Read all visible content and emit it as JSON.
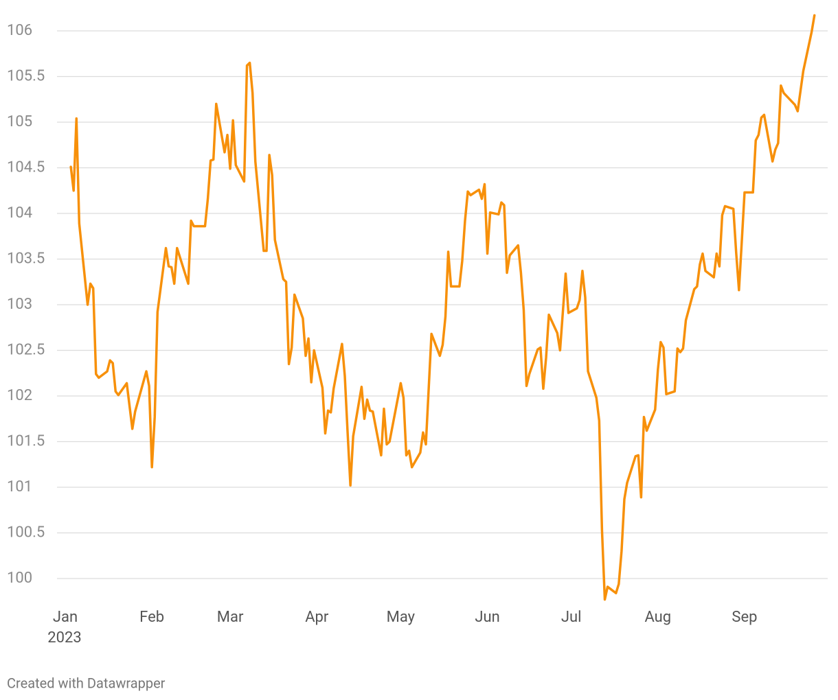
{
  "chart_data": {
    "type": "line",
    "x": [
      "2023-01-03",
      "2023-01-04",
      "2023-01-05",
      "2023-01-06",
      "2023-01-09",
      "2023-01-10",
      "2023-01-11",
      "2023-01-12",
      "2023-01-13",
      "2023-01-16",
      "2023-01-17",
      "2023-01-18",
      "2023-01-19",
      "2023-01-20",
      "2023-01-23",
      "2023-01-24",
      "2023-01-25",
      "2023-01-26",
      "2023-01-27",
      "2023-01-30",
      "2023-01-31",
      "2023-02-01",
      "2023-02-02",
      "2023-02-03",
      "2023-02-06",
      "2023-02-07",
      "2023-02-08",
      "2023-02-09",
      "2023-02-10",
      "2023-02-14",
      "2023-02-15",
      "2023-02-16",
      "2023-02-17",
      "2023-02-20",
      "2023-02-21",
      "2023-02-22",
      "2023-02-23",
      "2023-02-24",
      "2023-02-27",
      "2023-02-28",
      "2023-03-01",
      "2023-03-02",
      "2023-03-03",
      "2023-03-06",
      "2023-03-07",
      "2023-03-08",
      "2023-03-09",
      "2023-03-10",
      "2023-03-13",
      "2023-03-14",
      "2023-03-15",
      "2023-03-16",
      "2023-03-17",
      "2023-03-20",
      "2023-03-21",
      "2023-03-22",
      "2023-03-23",
      "2023-03-24",
      "2023-03-27",
      "2023-03-28",
      "2023-03-29",
      "2023-03-30",
      "2023-03-31",
      "2023-04-03",
      "2023-04-04",
      "2023-04-05",
      "2023-04-06",
      "2023-04-07",
      "2023-04-10",
      "2023-04-11",
      "2023-04-12",
      "2023-04-13",
      "2023-04-14",
      "2023-04-17",
      "2023-04-18",
      "2023-04-19",
      "2023-04-20",
      "2023-04-21",
      "2023-04-24",
      "2023-04-25",
      "2023-04-26",
      "2023-04-27",
      "2023-05-01",
      "2023-05-02",
      "2023-05-03",
      "2023-05-04",
      "2023-05-05",
      "2023-05-08",
      "2023-05-09",
      "2023-05-10",
      "2023-05-12",
      "2023-05-15",
      "2023-05-16",
      "2023-05-17",
      "2023-05-18",
      "2023-05-19",
      "2023-05-22",
      "2023-05-23",
      "2023-05-24",
      "2023-05-25",
      "2023-05-26",
      "2023-05-29",
      "2023-05-30",
      "2023-05-31",
      "2023-06-01",
      "2023-06-02",
      "2023-06-05",
      "2023-06-06",
      "2023-06-07",
      "2023-06-08",
      "2023-06-09",
      "2023-06-12",
      "2023-06-13",
      "2023-06-14",
      "2023-06-15",
      "2023-06-16",
      "2023-06-19",
      "2023-06-20",
      "2023-06-21",
      "2023-06-22",
      "2023-06-23",
      "2023-06-26",
      "2023-06-27",
      "2023-06-28",
      "2023-06-29",
      "2023-06-30",
      "2023-07-03",
      "2023-07-04",
      "2023-07-05",
      "2023-07-06",
      "2023-07-07",
      "2023-07-10",
      "2023-07-11",
      "2023-07-12",
      "2023-07-13",
      "2023-07-14",
      "2023-07-17",
      "2023-07-18",
      "2023-07-19",
      "2023-07-20",
      "2023-07-21",
      "2023-07-24",
      "2023-07-25",
      "2023-07-26",
      "2023-07-27",
      "2023-07-28",
      "2023-07-31",
      "2023-08-01",
      "2023-08-02",
      "2023-08-03",
      "2023-08-04",
      "2023-08-07",
      "2023-08-08",
      "2023-08-09",
      "2023-08-10",
      "2023-08-11",
      "2023-08-14",
      "2023-08-15",
      "2023-08-16",
      "2023-08-17",
      "2023-08-18",
      "2023-08-21",
      "2023-08-22",
      "2023-08-23",
      "2023-08-24",
      "2023-08-25",
      "2023-08-28",
      "2023-08-29",
      "2023-08-30",
      "2023-08-31",
      "2023-09-01",
      "2023-09-04",
      "2023-09-05",
      "2023-09-06",
      "2023-09-07",
      "2023-09-08",
      "2023-09-11",
      "2023-09-12",
      "2023-09-13",
      "2023-09-14",
      "2023-09-15",
      "2023-09-19",
      "2023-09-20",
      "2023-09-21",
      "2023-09-22",
      "2023-09-25",
      "2023-09-26"
    ],
    "series": [
      {
        "color": "#f7900a",
        "values": [
          104.51,
          104.25,
          105.04,
          103.89,
          103.0,
          103.23,
          103.18,
          102.24,
          102.2,
          102.27,
          102.39,
          102.36,
          102.05,
          102.01,
          102.14,
          101.89,
          101.64,
          101.83,
          101.94,
          102.27,
          102.11,
          101.22,
          101.77,
          102.92,
          103.62,
          103.42,
          103.41,
          103.23,
          103.62,
          103.23,
          103.92,
          103.86,
          103.86,
          103.86,
          104.16,
          104.58,
          104.59,
          105.2,
          104.67,
          104.86,
          104.49,
          105.02,
          104.53,
          104.35,
          105.62,
          105.65,
          105.32,
          104.57,
          103.59,
          103.59,
          104.64,
          104.42,
          103.71,
          103.28,
          103.25,
          102.35,
          102.53,
          103.11,
          102.85,
          102.44,
          102.63,
          102.15,
          102.5,
          102.09,
          101.59,
          101.84,
          101.82,
          102.08,
          102.57,
          102.22,
          101.6,
          101.02,
          101.56,
          102.1,
          101.75,
          101.96,
          101.84,
          101.83,
          101.35,
          101.86,
          101.47,
          101.5,
          102.14,
          101.98,
          101.35,
          101.4,
          101.22,
          101.38,
          101.6,
          101.47,
          102.68,
          102.44,
          102.56,
          102.87,
          103.58,
          103.2,
          103.2,
          103.48,
          103.92,
          104.24,
          104.2,
          104.26,
          104.16,
          104.32,
          103.56,
          104.01,
          103.99,
          104.12,
          104.09,
          103.35,
          103.54,
          103.65,
          103.35,
          102.94,
          102.11,
          102.24,
          102.51,
          102.53,
          102.08,
          102.42,
          102.89,
          102.69,
          102.5,
          102.92,
          103.34,
          102.91,
          102.96,
          103.05,
          103.37,
          103.08,
          102.27,
          101.98,
          101.73,
          100.53,
          99.77,
          99.91,
          99.84,
          99.94,
          100.3,
          100.87,
          101.05,
          101.34,
          101.35,
          100.89,
          101.77,
          101.62,
          101.85,
          102.29,
          102.59,
          102.53,
          102.02,
          102.05,
          102.52,
          102.48,
          102.52,
          102.83,
          103.17,
          103.2,
          103.44,
          103.56,
          103.37,
          103.3,
          103.56,
          103.42,
          103.98,
          104.08,
          104.05,
          103.57,
          103.16,
          103.69,
          104.23,
          104.23,
          104.8,
          104.86,
          105.05,
          105.08,
          104.57,
          104.7,
          104.77,
          105.4,
          105.32,
          105.19,
          105.12,
          105.34,
          105.56,
          105.99,
          106.17
        ]
      }
    ],
    "xlim": [
      "2023-01-01",
      "2023-09-30"
    ],
    "xticks": [
      {
        "value": "2023-01-01",
        "label": "Jan"
      },
      {
        "value": "2023-02-01",
        "label": "Feb"
      },
      {
        "value": "2023-03-01",
        "label": "Mar"
      },
      {
        "value": "2023-04-01",
        "label": "Apr"
      },
      {
        "value": "2023-05-01",
        "label": "May"
      },
      {
        "value": "2023-06-01",
        "label": "Jun"
      },
      {
        "value": "2023-07-01",
        "label": "Jul"
      },
      {
        "value": "2023-08-01",
        "label": "Aug"
      },
      {
        "value": "2023-09-01",
        "label": "Sep"
      }
    ],
    "x_year_label": "2023",
    "ylim": [
      99.75,
      106.2
    ],
    "yticks": [
      100,
      100.5,
      101,
      101.5,
      102,
      102.5,
      103,
      103.5,
      104,
      104.5,
      105,
      105.5,
      106
    ],
    "grid": true,
    "credit": "Created with Datawrapper"
  }
}
